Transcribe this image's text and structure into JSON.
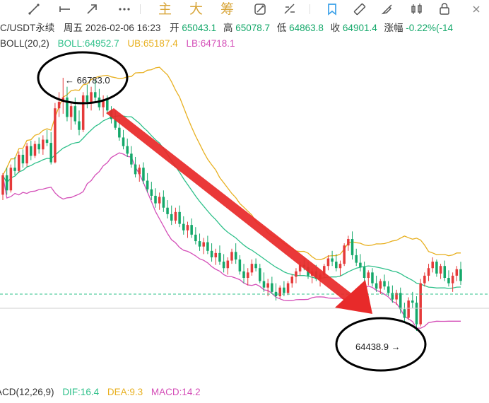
{
  "toolbar": {
    "icons": [
      "draw-line-icon",
      "horizontal-line-icon",
      "trend-arrow-icon",
      "more-dots-icon",
      "magic-icon",
      "compare-icon",
      "bookmark-icon",
      "ruler-icon",
      "brush-icon",
      "candlestick-icon",
      "lock-icon",
      "close-icon"
    ],
    "text_buttons": [
      "主",
      "大",
      "筹"
    ]
  },
  "info": {
    "symbol": "C/USDT永续",
    "time": "周五 2026-02-06 16:23",
    "open_label": "开",
    "open": "65043.1",
    "high_label": "高",
    "high": "65078.7",
    "low_label": "低",
    "low": "64863.8",
    "close_label": "收",
    "close": "64901.4",
    "change_label": "涨幅",
    "change": "-0.22%(-14"
  },
  "boll": {
    "name": "BOLL(20,2)",
    "mid": "BOLL:64952.7",
    "ub": "UB:65187.4",
    "lb": "LB:64718.1"
  },
  "macd": {
    "name": "ACD(12,26,9)",
    "dif": "DIF:16.4",
    "dea": "DEA:9.3",
    "macd": "MACD:14.2"
  },
  "annotations": {
    "high_marker": "← 66783.0",
    "low_marker": "64438.9 →"
  },
  "colors": {
    "up": "#e53a3a",
    "down": "#14a86a",
    "ub": "#e8b020",
    "mid": "#2ec08a",
    "lb": "#d44fb8",
    "arrow": "#e82a2a",
    "accent": "#3aa0e8"
  },
  "chart_data": {
    "type": "candlestick",
    "instrument": "C/USDT永续",
    "indicator": "BOLL(20,2)",
    "current": {
      "open": 65043.1,
      "high": 65078.7,
      "low": 64863.8,
      "close": 64901.4
    },
    "boll_values": {
      "mid": 64952.7,
      "ub": 65187.4,
      "lb": 64718.1
    },
    "marked_high": 66783.0,
    "marked_low": 64438.9,
    "candles": [
      [
        65700,
        65900,
        65650,
        65880
      ],
      [
        65880,
        65950,
        65700,
        65740
      ],
      [
        65740,
        65980,
        65720,
        65950
      ],
      [
        65950,
        66050,
        65880,
        65920
      ],
      [
        65920,
        66100,
        65900,
        66070
      ],
      [
        66070,
        66120,
        65950,
        65990
      ],
      [
        65990,
        66180,
        65960,
        66150
      ],
      [
        66150,
        66200,
        66020,
        66060
      ],
      [
        66060,
        66200,
        66040,
        66170
      ],
      [
        66170,
        66230,
        66080,
        66120
      ],
      [
        66120,
        66250,
        66070,
        66210
      ],
      [
        66210,
        66300,
        66150,
        66180
      ],
      [
        66180,
        66280,
        65980,
        66000
      ],
      [
        66000,
        66550,
        65990,
        66500
      ],
      [
        66500,
        66650,
        66420,
        66560
      ],
      [
        66560,
        66783,
        66450,
        66600
      ],
      [
        66600,
        66700,
        66380,
        66420
      ],
      [
        66420,
        66560,
        66300,
        66520
      ],
      [
        66520,
        66600,
        66350,
        66380
      ],
      [
        66380,
        66480,
        66250,
        66300
      ],
      [
        66300,
        66650,
        66280,
        66620
      ],
      [
        66620,
        66720,
        66500,
        66560
      ],
      [
        66560,
        66700,
        66480,
        66650
      ],
      [
        66650,
        66760,
        66560,
        66600
      ],
      [
        66600,
        66680,
        66480,
        66510
      ],
      [
        66510,
        66620,
        66420,
        66580
      ],
      [
        66580,
        66620,
        66450,
        66480
      ],
      [
        66480,
        66520,
        66360,
        66400
      ],
      [
        66400,
        66480,
        66300,
        66320
      ],
      [
        66320,
        66400,
        66200,
        66230
      ],
      [
        66230,
        66300,
        66120,
        66150
      ],
      [
        66150,
        66220,
        66050,
        66080
      ],
      [
        66080,
        66150,
        65950,
        65980
      ],
      [
        65980,
        66050,
        65860,
        65890
      ],
      [
        65890,
        65980,
        65820,
        65950
      ],
      [
        65950,
        66000,
        65800,
        65830
      ],
      [
        65830,
        65900,
        65720,
        65750
      ],
      [
        65750,
        65820,
        65650,
        65690
      ],
      [
        65690,
        65760,
        65580,
        65620
      ],
      [
        65620,
        65720,
        65560,
        65680
      ],
      [
        65680,
        65740,
        65540,
        65580
      ],
      [
        65580,
        65650,
        65480,
        65520
      ],
      [
        65520,
        65600,
        65420,
        65460
      ],
      [
        65460,
        65580,
        65430,
        65540
      ],
      [
        65540,
        65600,
        65400,
        65430
      ],
      [
        65430,
        65500,
        65330,
        65370
      ],
      [
        65370,
        65450,
        65300,
        65420
      ],
      [
        65420,
        65480,
        65300,
        65330
      ],
      [
        65330,
        65400,
        65240,
        65270
      ],
      [
        65270,
        65340,
        65180,
        65220
      ],
      [
        65220,
        65300,
        65150,
        65260
      ],
      [
        65260,
        65320,
        65150,
        65180
      ],
      [
        65180,
        65250,
        65080,
        65120
      ],
      [
        65120,
        65200,
        65050,
        65160
      ],
      [
        65160,
        65230,
        65050,
        65080
      ],
      [
        65080,
        65150,
        64980,
        65020
      ],
      [
        65020,
        65120,
        64960,
        65090
      ],
      [
        65090,
        65200,
        65060,
        65170
      ],
      [
        65170,
        65250,
        65060,
        65100
      ],
      [
        65100,
        65140,
        64960,
        64990
      ],
      [
        64990,
        65060,
        64880,
        64930
      ],
      [
        64930,
        65020,
        64860,
        64980
      ],
      [
        64980,
        65100,
        64950,
        65060
      ],
      [
        65060,
        65110,
        64990,
        65020
      ],
      [
        65020,
        65060,
        64880,
        64900
      ],
      [
        64900,
        64980,
        64800,
        64840
      ],
      [
        64840,
        64920,
        64760,
        64880
      ],
      [
        64880,
        64940,
        64780,
        64800
      ],
      [
        64800,
        64880,
        64720,
        64760
      ],
      [
        64760,
        64860,
        64740,
        64840
      ],
      [
        64840,
        64900,
        64760,
        64790
      ],
      [
        64790,
        64900,
        64770,
        64880
      ],
      [
        64880,
        64960,
        64840,
        64940
      ],
      [
        64940,
        65020,
        64880,
        64990
      ],
      [
        64990,
        65080,
        64950,
        65050
      ],
      [
        65050,
        65120,
        65000,
        65030
      ],
      [
        65030,
        65080,
        64920,
        64950
      ],
      [
        64950,
        65020,
        64880,
        64990
      ],
      [
        64990,
        65050,
        64900,
        64920
      ],
      [
        64920,
        64980,
        64850,
        64960
      ],
      [
        64960,
        65060,
        64930,
        65040
      ],
      [
        65040,
        65140,
        65000,
        65110
      ],
      [
        65110,
        65180,
        65040,
        65080
      ],
      [
        65080,
        65150,
        64990,
        65020
      ],
      [
        65020,
        65090,
        64950,
        65060
      ],
      [
        65060,
        65250,
        65040,
        65230
      ],
      [
        65230,
        65320,
        65180,
        65290
      ],
      [
        65290,
        65360,
        65100,
        65140
      ],
      [
        65140,
        65200,
        65040,
        65070
      ],
      [
        65070,
        65150,
        64990,
        65030
      ],
      [
        65030,
        65080,
        64900,
        64930
      ],
      [
        64930,
        65000,
        64860,
        64980
      ],
      [
        64980,
        65020,
        64850,
        64880
      ],
      [
        64880,
        64950,
        64800,
        64830
      ],
      [
        64830,
        64920,
        64780,
        64900
      ],
      [
        64900,
        64960,
        64820,
        64850
      ],
      [
        64850,
        64900,
        64760,
        64790
      ],
      [
        64790,
        64860,
        64700,
        64730
      ],
      [
        64730,
        64820,
        64680,
        64790
      ],
      [
        64790,
        64840,
        64600,
        64640
      ],
      [
        64640,
        64700,
        64520,
        64560
      ],
      [
        64560,
        64750,
        64540,
        64720
      ],
      [
        64720,
        64800,
        64650,
        64700
      ],
      [
        64700,
        64760,
        64438.9,
        64500
      ],
      [
        64500,
        64920,
        64480,
        64880
      ],
      [
        64880,
        64980,
        64850,
        64950
      ],
      [
        64950,
        65060,
        64900,
        65020
      ],
      [
        65020,
        65120,
        64980,
        65080
      ],
      [
        65080,
        65100,
        64940,
        64970
      ],
      [
        64970,
        65060,
        64920,
        65040
      ],
      [
        65040,
        65090,
        64900,
        64930
      ],
      [
        64930,
        65000,
        64850,
        64880
      ],
      [
        64880,
        64980,
        64800,
        64950
      ],
      [
        64950,
        65040,
        64900,
        65010
      ],
      [
        65010,
        65078.7,
        64863.8,
        64901.4
      ]
    ]
  }
}
